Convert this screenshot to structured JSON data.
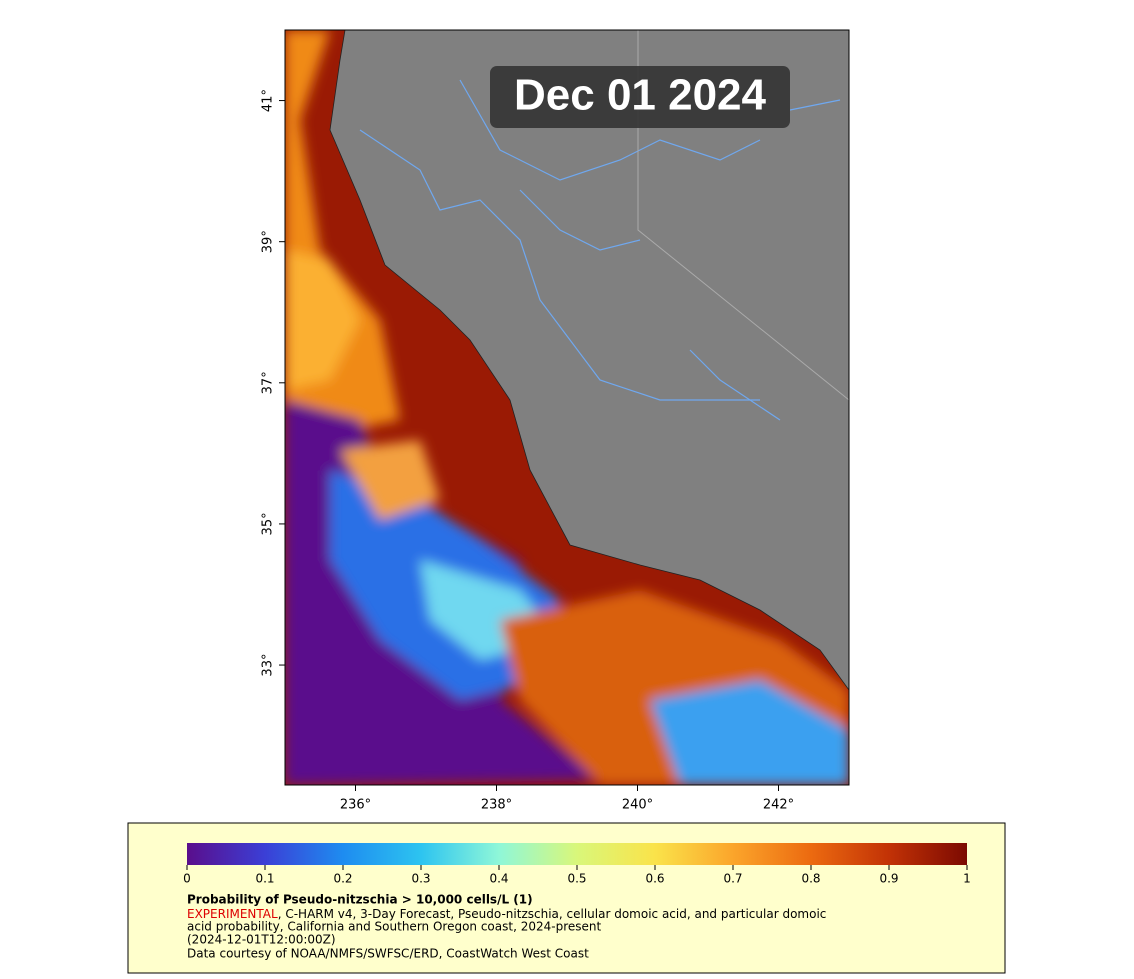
{
  "map": {
    "date_label": "Dec 01 2024",
    "xlim": [
      235,
      243
    ],
    "ylim": [
      31.3,
      42
    ],
    "xticks": [
      {
        "value": 236,
        "label": "236°"
      },
      {
        "value": 238,
        "label": "238°"
      },
      {
        "value": 240,
        "label": "240°"
      },
      {
        "value": 242,
        "label": "242°"
      }
    ],
    "yticks": [
      {
        "value": 33,
        "label": "33°"
      },
      {
        "value": 35,
        "label": "35°"
      },
      {
        "value": 37,
        "label": "37°"
      },
      {
        "value": 39,
        "label": "39°"
      },
      {
        "value": 41,
        "label": "41°"
      }
    ]
  },
  "colorbar": {
    "lim": [
      0,
      1
    ],
    "ticks": [
      0,
      0.1,
      0.2,
      0.3,
      0.4,
      0.5,
      0.6,
      0.7,
      0.8,
      0.9,
      1
    ],
    "colors": [
      "#5a0e8c",
      "#3b3fd6",
      "#1e8cf0",
      "#2dc4f0",
      "#8ff7d8",
      "#d9f77a",
      "#fae34a",
      "#fba52b",
      "#ec6a10",
      "#c23206",
      "#7c0a02"
    ],
    "title": "Probability of Pseudo-nitzschia > 10,000 cells/L (1)",
    "flag": "EXPERIMENTAL",
    "description_lines": [
      ", C-HARM v4, 3-Day Forecast, Pseudo-nitzschia, cellular domoic acid, and particular domoic",
      "acid probability, California and Southern Oregon coast, 2024-present"
    ],
    "time": "(2024-12-01T12:00:00Z)",
    "credit": "Data courtesy of NOAA/NMFS/SWFSC/ERD, CoastWatch West Coast"
  }
}
